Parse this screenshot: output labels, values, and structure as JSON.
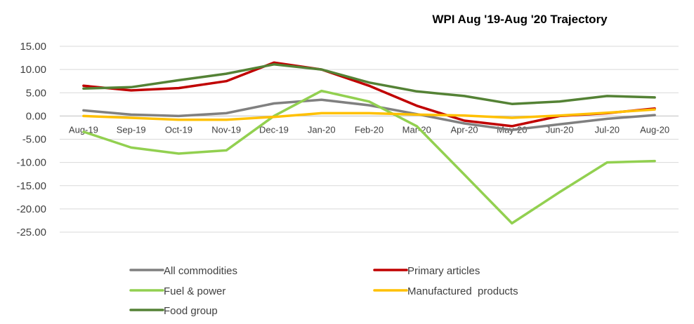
{
  "chart_data": {
    "type": "line",
    "title": "WPI Aug '19-Aug '20 Trajectory",
    "xlabel": "",
    "ylabel": "",
    "categories": [
      "Aug-19",
      "Sep-19",
      "Oct-19",
      "Nov-19",
      "Dec-19",
      "Jan-20",
      "Feb-20",
      "Mar-20",
      "Apr-20",
      "May-20",
      "Jun-20",
      "Jul-20",
      "Aug-20"
    ],
    "ylim": [
      -25,
      15
    ],
    "yticks": [
      "15.00",
      "10.00",
      "5.00",
      "0.00",
      "-5.00",
      "-10.00",
      "-15.00",
      "-20.00",
      "-25.00"
    ],
    "yticks_values": [
      15,
      10,
      5,
      0,
      -5,
      -10,
      -15,
      -20,
      -25
    ],
    "grid": true,
    "legend_position": "bottom",
    "series": [
      {
        "name": "All commodities",
        "color": "#808080",
        "values": [
          1.2,
          0.3,
          0.0,
          0.6,
          2.7,
          3.5,
          2.3,
          0.4,
          -1.6,
          -3.0,
          -1.8,
          -0.6,
          0.2
        ]
      },
      {
        "name": "Primary articles",
        "color": "#c00000",
        "values": [
          6.5,
          5.5,
          6.0,
          7.5,
          11.5,
          10.0,
          6.5,
          2.2,
          -1.0,
          -2.2,
          0.0,
          0.6,
          1.6
        ]
      },
      {
        "name": "Fuel & power",
        "color": "#92d050",
        "values": [
          -3.4,
          -6.8,
          -8.1,
          -7.4,
          0.0,
          5.4,
          3.1,
          -2.2,
          -12.6,
          -23.1,
          -16.4,
          -10.0,
          -9.7
        ]
      },
      {
        "name": "Manufactured  products",
        "color": "#ffc000",
        "values": [
          0.0,
          -0.4,
          -0.8,
          -0.8,
          -0.2,
          0.6,
          0.6,
          0.3,
          0.1,
          -0.4,
          0.1,
          0.7,
          1.4
        ]
      },
      {
        "name": "Food group",
        "color": "#548235",
        "values": [
          5.9,
          6.2,
          7.7,
          9.1,
          11.1,
          10.0,
          7.2,
          5.3,
          4.3,
          2.6,
          3.1,
          4.3,
          4.0
        ]
      }
    ]
  }
}
